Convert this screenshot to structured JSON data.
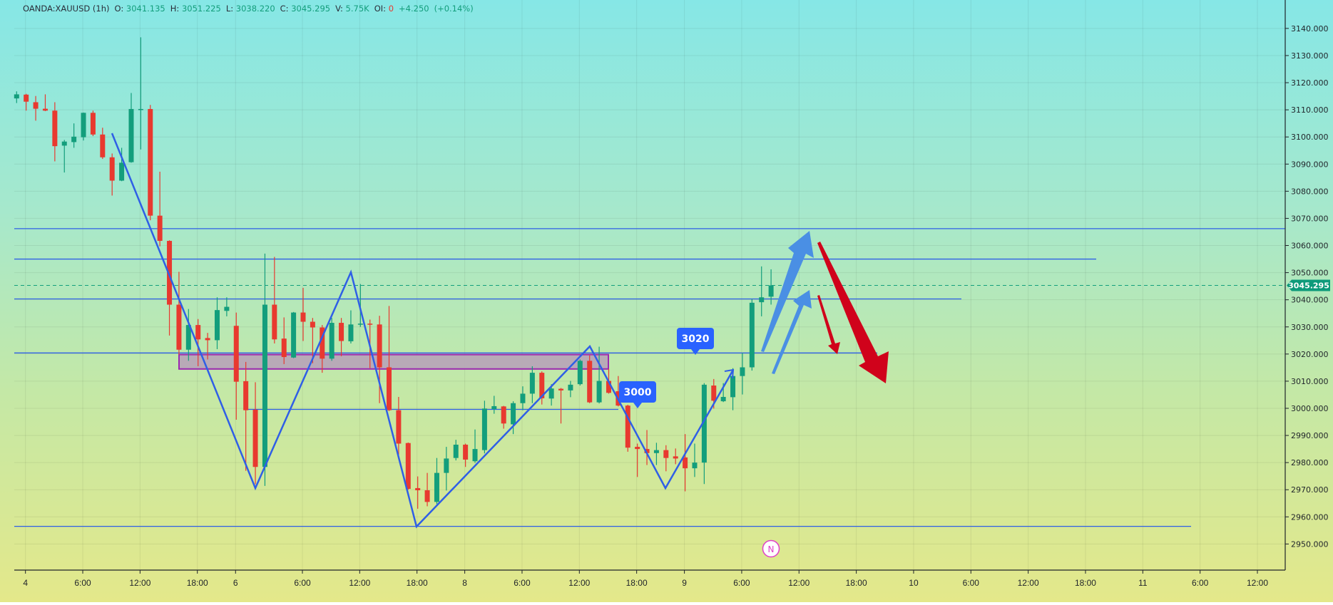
{
  "header": {
    "symbol": "OANDA:XAUUSD (1h)",
    "open_label": "O:",
    "open": "3041.135",
    "high_label": "H:",
    "high": "3051.225",
    "low_label": "L:",
    "low": "3038.220",
    "close_label": "C:",
    "close": "3045.295",
    "volume_label": "V:",
    "volume": "5.75K",
    "oi_label": "OI:",
    "oi": "0",
    "change": "+4.250",
    "change_pct": "(+0.14%)"
  },
  "colors": {
    "up": "#139e7c",
    "down": "#e8392f",
    "drawing_blue": "#2f5fe6",
    "zone_fill": "#b7a6b7",
    "zone_border": "#9c27b0",
    "arrow_blue": "#4a8fe4",
    "arrow_red": "#d0021b",
    "last_price_bg": "#0d9a7a"
  },
  "callouts": [
    {
      "text": "3000"
    },
    {
      "text": "3020"
    }
  ],
  "marker": {
    "text": "N"
  },
  "last_price_label": "3045.295",
  "chart_data": {
    "type": "candlestick",
    "interval": "1h",
    "ylim": [
      2945,
      3145
    ],
    "grid": true,
    "y_tick_labels": [
      "3140.000",
      "3130.000",
      "3120.000",
      "3110.000",
      "3100.000",
      "3090.000",
      "3080.000",
      "3070.000",
      "3060.000",
      "3050.000",
      "3040.000",
      "3030.000",
      "3020.000",
      "3010.000",
      "3000.000",
      "2990.000",
      "2980.000",
      "2970.000",
      "2960.000",
      "2950.000"
    ],
    "x_tick_labels": [
      "4",
      "6:00",
      "12:00",
      "18:00",
      "6",
      "6:00",
      "12:00",
      "18:00",
      "8",
      "6:00",
      "12:00",
      "18:00",
      "9",
      "6:00",
      "12:00",
      "18:00",
      "10",
      "6:00",
      "12:00",
      "18:00",
      "11",
      "6:00",
      "12:00"
    ],
    "last_price": 3045.295,
    "horizontal_levels": [
      3066.2,
      3055.0,
      3040.3,
      3020.4,
      2999.6,
      2956.5
    ],
    "zone": {
      "top": 3019.8,
      "bottom": 3014.5
    },
    "ohlc": [
      [
        3114.2,
        3116.8,
        3112.5,
        3115.7
      ],
      [
        3115.6,
        3115.9,
        3109.7,
        3113.0
      ],
      [
        3112.8,
        3115.1,
        3106.0,
        3110.4
      ],
      [
        3110.4,
        3115.7,
        3109.5,
        3109.7
      ],
      [
        3109.7,
        3112.8,
        3091.0,
        3096.6
      ],
      [
        3096.8,
        3098.9,
        3086.9,
        3098.3
      ],
      [
        3098.1,
        3105.0,
        3096.0,
        3100.1
      ],
      [
        3099.9,
        3109.0,
        3098.7,
        3108.9
      ],
      [
        3108.9,
        3109.7,
        3100.3,
        3100.9
      ],
      [
        3100.9,
        3103.4,
        3091.9,
        3092.5
      ],
      [
        3092.5,
        3093.9,
        3078.4,
        3083.9
      ],
      [
        3083.9,
        3096.0,
        3083.7,
        3090.5
      ],
      [
        3090.7,
        3116.2,
        3090.5,
        3110.3
      ],
      [
        3110.2,
        3136.7,
        3095.4,
        3110.3
      ],
      [
        3110.3,
        3111.8,
        3069.3,
        3071.0
      ],
      [
        3071.0,
        3087.2,
        3059.7,
        3061.7
      ],
      [
        3061.7,
        3061.9,
        3026.8,
        3038.2
      ],
      [
        3038.2,
        3050.3,
        3019.8,
        3021.6
      ],
      [
        3021.6,
        3036.6,
        3017.5,
        3030.7
      ],
      [
        3030.7,
        3032.9,
        3015.5,
        3025.4
      ],
      [
        3025.9,
        3027.8,
        3018.0,
        3025.1
      ],
      [
        3025.1,
        3040.9,
        3021.8,
        3036.2
      ],
      [
        3035.9,
        3040.9,
        3033.9,
        3037.4
      ],
      [
        3030.4,
        3035.3,
        2995.8,
        3009.8
      ],
      [
        3010.0,
        3017.1,
        2977.0,
        2999.3
      ],
      [
        2999.5,
        3009.6,
        2972.0,
        2978.4
      ],
      [
        2978.4,
        3057.0,
        2971.4,
        3038.2
      ],
      [
        3038.2,
        3055.8,
        3023.9,
        3025.4
      ],
      [
        3025.7,
        3033.5,
        3016.3,
        3018.9
      ],
      [
        3018.7,
        3035.5,
        3018.5,
        3035.3
      ],
      [
        3035.3,
        3044.4,
        3024.8,
        3031.9
      ],
      [
        3031.9,
        3033.3,
        3016.6,
        3029.8
      ],
      [
        3029.8,
        3030.7,
        3013.1,
        3018.3
      ],
      [
        3018.3,
        3033.3,
        3017.5,
        3031.5
      ],
      [
        3031.5,
        3033.3,
        3019.2,
        3024.8
      ],
      [
        3024.7,
        3036.1,
        3023.9,
        3030.9
      ],
      [
        3031.0,
        3045.8,
        3030.0,
        3031.2
      ],
      [
        3031.2,
        3032.7,
        3014.8,
        3030.8
      ],
      [
        3030.9,
        3034.1,
        3001.9,
        3015.1
      ],
      [
        3015.1,
        3037.7,
        2999.0,
        2999.3
      ],
      [
        2999.3,
        3004.2,
        2982.9,
        2987.0
      ],
      [
        2987.2,
        2987.4,
        2970.0,
        2970.3
      ],
      [
        2970.6,
        2974.9,
        2963.0,
        2969.8
      ],
      [
        2969.8,
        2976.2,
        2963.9,
        2965.5
      ],
      [
        2965.5,
        2981.7,
        2964.7,
        2976.2
      ],
      [
        2976.2,
        2985.8,
        2969.7,
        2981.5
      ],
      [
        2981.7,
        2988.4,
        2980.8,
        2986.6
      ],
      [
        2986.6,
        2987.0,
        2978.4,
        2981.1
      ],
      [
        2980.5,
        2992.2,
        2979.9,
        2985.0
      ],
      [
        2984.6,
        3002.8,
        2983.4,
        2999.9
      ],
      [
        2999.7,
        3004.6,
        2998.0,
        3000.8
      ],
      [
        3000.7,
        3000.9,
        2992.5,
        2994.4
      ],
      [
        2994.1,
        3002.6,
        2990.5,
        3001.9
      ],
      [
        3001.9,
        3008.1,
        2999.3,
        3005.4
      ],
      [
        3005.4,
        3015.5,
        3001.9,
        3013.1
      ],
      [
        3013.1,
        3013.6,
        3001.4,
        3003.7
      ],
      [
        3003.6,
        3008.9,
        3001.0,
        3007.3
      ],
      [
        3007.2,
        3007.5,
        2994.4,
        3006.6
      ],
      [
        3006.6,
        3010.1,
        3004.1,
        3008.7
      ],
      [
        3008.9,
        3018.0,
        3008.4,
        3017.5
      ],
      [
        3017.5,
        3019.5,
        3001.9,
        3002.2
      ],
      [
        3002.2,
        3022.7,
        3001.8,
        3010.1
      ],
      [
        3010.1,
        3014.5,
        3005.4,
        3005.7
      ],
      [
        3006.3,
        3011.9,
        3000.7,
        3001.0
      ],
      [
        3001.0,
        3001.3,
        2984.0,
        2985.5
      ],
      [
        2985.8,
        2987.0,
        2974.7,
        2985.0
      ],
      [
        2985.0,
        2992.0,
        2979.1,
        2983.5
      ],
      [
        2983.5,
        2987.3,
        2979.1,
        2984.6
      ],
      [
        2984.6,
        2986.4,
        2976.8,
        2981.7
      ],
      [
        2982.3,
        2985.2,
        2979.4,
        2981.5
      ],
      [
        2981.9,
        2990.5,
        2969.4,
        2977.9
      ],
      [
        2977.9,
        2987.0,
        2974.7,
        2980.0
      ],
      [
        2980.0,
        3009.3,
        2972.1,
        3008.7
      ],
      [
        3008.4,
        3010.8,
        2999.9,
        3002.8
      ],
      [
        3002.6,
        3009.3,
        3002.3,
        3004.2
      ],
      [
        3004.1,
        3014.8,
        2999.3,
        3011.9
      ],
      [
        3011.9,
        3020.4,
        3005.1,
        3015.1
      ],
      [
        3015.1,
        3040.3,
        3013.9,
        3038.9
      ],
      [
        3039.1,
        3052.3,
        3033.9,
        3040.9
      ],
      [
        3041.135,
        3051.225,
        3038.22,
        3045.295
      ]
    ]
  }
}
